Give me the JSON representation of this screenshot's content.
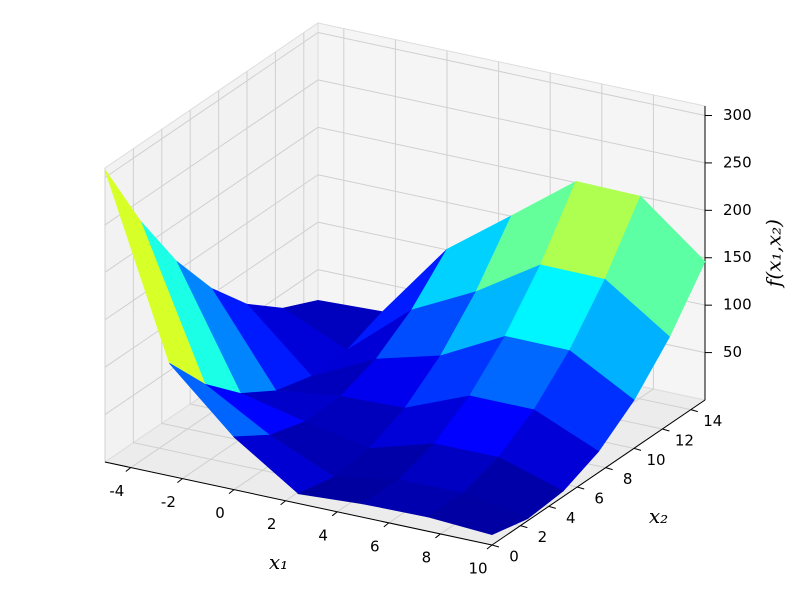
{
  "chart_data": {
    "type": "surface",
    "x_label": "x₁",
    "y_label": "x₂",
    "z_label": "f(x₁,x₂)",
    "x": [
      -5,
      -2.5,
      0,
      2.5,
      5,
      7.5,
      10
    ],
    "y": [
      0,
      2.5,
      5,
      7.5,
      10,
      12.5,
      15
    ],
    "z": [
      [
        308.1,
        228.4,
        161.2,
        106.6,
        64.4,
        34.7,
        17.5
      ],
      [
        118.6,
        71.0,
        35.8,
        13.1,
        2.9,
        5.2,
        20.1
      ],
      [
        55.6,
        31.9,
        20.6,
        21.9,
        35.6,
        61.9,
        100.6
      ],
      [
        10.3,
        2.4,
        7.0,
        24.1,
        53.7,
        95.8,
        150.5
      ],
      [
        14.3,
        14.2,
        26.6,
        51.5,
        88.9,
        138.8,
        201.2
      ],
      [
        15.1,
        14.7,
        26.8,
        51.4,
        88.5,
        138.1,
        200.2
      ],
      [
        11.0,
        2.2,
        5.9,
        22.2,
        50.9,
        92.1,
        145.9
      ]
    ],
    "xlim": [
      -5,
      10
    ],
    "ylim": [
      0,
      15
    ],
    "zlim": [
      0,
      310
    ],
    "xticks": [
      -4,
      -2,
      0,
      2,
      4,
      6,
      8,
      10
    ],
    "yticks": [
      0,
      2,
      4,
      6,
      8,
      10,
      12,
      14
    ],
    "zticks": [
      50,
      100,
      150,
      200,
      250,
      300
    ],
    "colormap": "jet",
    "grid": true
  }
}
